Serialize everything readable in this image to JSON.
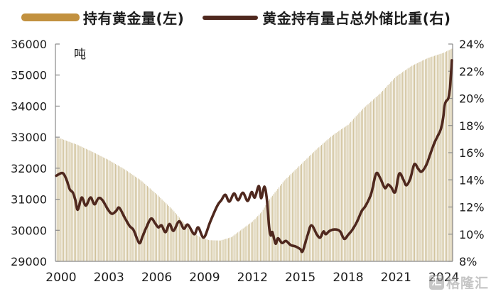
{
  "legend": {
    "bar_label": "持有黄金量(左)",
    "line_label": "黄金持有量占总外储比重(右)"
  },
  "watermark": {
    "logo_glyph": "汇",
    "text": "格隆汇"
  },
  "colors": {
    "bar_legend": "#c2913f",
    "bar_fill": "#cfc098",
    "line": "#4f281e",
    "axis": "#8a8a8a",
    "axis_text": "#1a1a1a"
  },
  "chart_data": {
    "type": "combo-bar-line",
    "title": "",
    "x_axis": {
      "tick_labels": [
        "2000",
        "2003",
        "2006",
        "2009",
        "2012",
        "2015",
        "2018",
        "2021",
        "2024"
      ],
      "range": [
        1999.65,
        2024.55
      ]
    },
    "left_axis": {
      "unit": "吨",
      "min": 29000,
      "max": 36000,
      "step": 1000,
      "tick_labels": [
        "36000",
        "35000",
        "34000",
        "33000",
        "32000",
        "31000",
        "30000",
        "29000"
      ]
    },
    "right_axis": {
      "min": 8,
      "max": 24,
      "step": 2,
      "tick_labels": [
        "24%",
        "22%",
        "20%",
        "18%",
        "16%",
        "14%",
        "12%",
        "10%",
        "8%"
      ]
    },
    "series": [
      {
        "name": "持有黄金量(左)",
        "type": "bar",
        "axis": "left",
        "unit": "吨",
        "points": [
          [
            1999.75,
            32980
          ],
          [
            2000,
            32950
          ],
          [
            2001,
            32760
          ],
          [
            2002,
            32520
          ],
          [
            2003,
            32260
          ],
          [
            2004,
            31960
          ],
          [
            2005,
            31610
          ],
          [
            2006,
            31160
          ],
          [
            2007,
            30660
          ],
          [
            2008,
            30060
          ],
          [
            2008.7,
            29780
          ],
          [
            2009.3,
            29680
          ],
          [
            2010,
            29670
          ],
          [
            2010.7,
            29780
          ],
          [
            2011,
            29900
          ],
          [
            2012,
            30280
          ],
          [
            2012.6,
            30600
          ],
          [
            2013,
            30950
          ],
          [
            2014,
            31600
          ],
          [
            2015,
            32100
          ],
          [
            2016,
            32600
          ],
          [
            2017,
            33050
          ],
          [
            2018,
            33400
          ],
          [
            2019,
            33950
          ],
          [
            2020,
            34400
          ],
          [
            2021,
            34950
          ],
          [
            2022,
            35300
          ],
          [
            2023,
            35550
          ],
          [
            2024,
            35720
          ],
          [
            2024.5,
            35850
          ]
        ]
      },
      {
        "name": "黄金持有量占总外储比重(右)",
        "type": "line",
        "axis": "right",
        "unit": "%",
        "points": [
          [
            1999.7,
            14.3
          ],
          [
            2000.1,
            14.5
          ],
          [
            2000.35,
            14.0
          ],
          [
            2000.55,
            13.3
          ],
          [
            2000.75,
            13.05
          ],
          [
            2000.9,
            12.5
          ],
          [
            2001.05,
            11.8
          ],
          [
            2001.3,
            12.7
          ],
          [
            2001.55,
            12.1
          ],
          [
            2001.85,
            12.7
          ],
          [
            2002.1,
            12.2
          ],
          [
            2002.35,
            12.65
          ],
          [
            2002.6,
            12.5
          ],
          [
            2002.95,
            11.8
          ],
          [
            2003.2,
            11.5
          ],
          [
            2003.45,
            11.7
          ],
          [
            2003.65,
            11.95
          ],
          [
            2004.0,
            11.2
          ],
          [
            2004.3,
            10.6
          ],
          [
            2004.55,
            10.3
          ],
          [
            2004.9,
            9.35
          ],
          [
            2005.1,
            9.8
          ],
          [
            2005.35,
            10.5
          ],
          [
            2005.65,
            11.15
          ],
          [
            2005.9,
            10.8
          ],
          [
            2006.1,
            10.5
          ],
          [
            2006.3,
            10.65
          ],
          [
            2006.55,
            10.15
          ],
          [
            2006.8,
            10.75
          ],
          [
            2007.05,
            10.25
          ],
          [
            2007.4,
            10.95
          ],
          [
            2007.7,
            10.4
          ],
          [
            2007.95,
            10.7
          ],
          [
            2008.35,
            10.0
          ],
          [
            2008.6,
            10.5
          ],
          [
            2008.95,
            9.75
          ],
          [
            2009.35,
            10.9
          ],
          [
            2009.8,
            12.1
          ],
          [
            2010.05,
            12.5
          ],
          [
            2010.3,
            12.9
          ],
          [
            2010.55,
            12.4
          ],
          [
            2010.85,
            13.0
          ],
          [
            2011.1,
            12.5
          ],
          [
            2011.4,
            13.05
          ],
          [
            2011.7,
            12.45
          ],
          [
            2011.95,
            13.1
          ],
          [
            2012.15,
            12.7
          ],
          [
            2012.4,
            13.55
          ],
          [
            2012.55,
            12.65
          ],
          [
            2012.75,
            13.5
          ],
          [
            2012.9,
            12.6
          ],
          [
            2013.05,
            10.5
          ],
          [
            2013.15,
            9.9
          ],
          [
            2013.25,
            10.15
          ],
          [
            2013.45,
            9.3
          ],
          [
            2013.6,
            9.7
          ],
          [
            2013.85,
            9.35
          ],
          [
            2014.1,
            9.5
          ],
          [
            2014.4,
            9.2
          ],
          [
            2014.7,
            9.1
          ],
          [
            2015.0,
            8.9
          ],
          [
            2015.15,
            8.75
          ],
          [
            2015.45,
            9.9
          ],
          [
            2015.7,
            10.65
          ],
          [
            2016.05,
            9.95
          ],
          [
            2016.25,
            9.75
          ],
          [
            2016.45,
            10.2
          ],
          [
            2016.6,
            10.0
          ],
          [
            2016.85,
            10.25
          ],
          [
            2017.2,
            10.35
          ],
          [
            2017.5,
            10.2
          ],
          [
            2017.75,
            9.65
          ],
          [
            2018.0,
            9.95
          ],
          [
            2018.25,
            10.3
          ],
          [
            2018.55,
            10.9
          ],
          [
            2018.85,
            11.7
          ],
          [
            2019.1,
            12.1
          ],
          [
            2019.45,
            13.0
          ],
          [
            2019.75,
            14.45
          ],
          [
            2020.0,
            14.15
          ],
          [
            2020.3,
            13.4
          ],
          [
            2020.5,
            13.65
          ],
          [
            2020.7,
            13.45
          ],
          [
            2020.95,
            13.1
          ],
          [
            2021.2,
            14.45
          ],
          [
            2021.45,
            14.05
          ],
          [
            2021.65,
            13.6
          ],
          [
            2021.9,
            14.1
          ],
          [
            2022.15,
            15.15
          ],
          [
            2022.4,
            14.8
          ],
          [
            2022.6,
            14.6
          ],
          [
            2022.9,
            15.1
          ],
          [
            2023.15,
            15.9
          ],
          [
            2023.4,
            16.7
          ],
          [
            2023.6,
            17.2
          ],
          [
            2023.8,
            17.7
          ],
          [
            2023.95,
            18.5
          ],
          [
            2024.05,
            19.5
          ],
          [
            2024.15,
            19.8
          ],
          [
            2024.28,
            20.0
          ],
          [
            2024.38,
            20.7
          ],
          [
            2024.45,
            21.9
          ],
          [
            2024.5,
            22.8
          ]
        ]
      }
    ]
  }
}
